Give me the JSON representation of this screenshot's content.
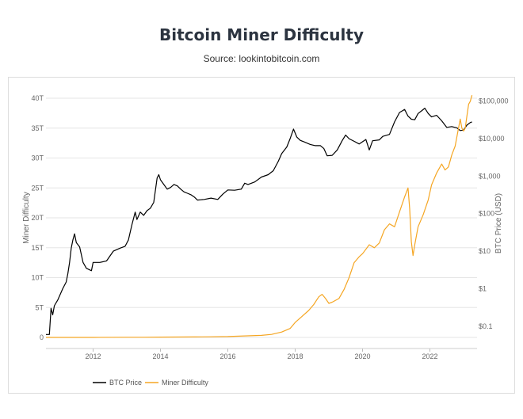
{
  "header": {
    "title": "Bitcoin Miner Difficulty",
    "subtitle": "Source: lookintobitcoin.com"
  },
  "chart_data": {
    "type": "line",
    "title": "Bitcoin Miner Difficulty",
    "subtitle": "Source: lookintobitcoin.com",
    "x_ticks": [
      "2012",
      "2014",
      "2016",
      "2018",
      "2020",
      "2022"
    ],
    "xlim": [
      2010.6,
      2023.4
    ],
    "y_left": {
      "label": "Miner Difficulty",
      "scale": "linear",
      "lim": [
        0,
        40
      ],
      "unit_suffix": "T",
      "ticks": [
        "0",
        "5T",
        "10T",
        "15T",
        "20T",
        "25T",
        "30T",
        "35T",
        "40T"
      ]
    },
    "y_right": {
      "label": "BTC Price (USD)",
      "scale": "log",
      "lim": [
        0.05,
        120000
      ],
      "ticks": [
        "$0.1",
        "$1",
        "$10",
        "$100",
        "$1,000",
        "$10,000",
        "$100,000"
      ],
      "tick_values": [
        0.1,
        1,
        10,
        100,
        1000,
        10000,
        100000
      ]
    },
    "series": [
      {
        "name": "BTC Price",
        "axis": "right",
        "color": "#000000",
        "points": [
          [
            2010.6,
            0.06
          ],
          [
            2010.7,
            0.06
          ],
          [
            2010.75,
            0.3
          ],
          [
            2010.8,
            0.2
          ],
          [
            2010.85,
            0.35
          ],
          [
            2010.95,
            0.5
          ],
          [
            2011.1,
            1.0
          ],
          [
            2011.2,
            1.5
          ],
          [
            2011.25,
            2.5
          ],
          [
            2011.3,
            5
          ],
          [
            2011.35,
            12
          ],
          [
            2011.4,
            20
          ],
          [
            2011.45,
            29
          ],
          [
            2011.5,
            17
          ],
          [
            2011.6,
            13
          ],
          [
            2011.7,
            5
          ],
          [
            2011.8,
            3.5
          ],
          [
            2011.95,
            3
          ],
          [
            2012.0,
            5
          ],
          [
            2012.2,
            5
          ],
          [
            2012.4,
            5.5
          ],
          [
            2012.6,
            10
          ],
          [
            2012.8,
            12
          ],
          [
            2012.95,
            13.5
          ],
          [
            2013.05,
            20
          ],
          [
            2013.15,
            50
          ],
          [
            2013.25,
            110
          ],
          [
            2013.3,
            70
          ],
          [
            2013.4,
            110
          ],
          [
            2013.5,
            90
          ],
          [
            2013.6,
            120
          ],
          [
            2013.7,
            140
          ],
          [
            2013.8,
            200
          ],
          [
            2013.9,
            900
          ],
          [
            2013.95,
            1100
          ],
          [
            2014.0,
            800
          ],
          [
            2014.1,
            600
          ],
          [
            2014.2,
            450
          ],
          [
            2014.3,
            500
          ],
          [
            2014.4,
            600
          ],
          [
            2014.5,
            550
          ],
          [
            2014.6,
            450
          ],
          [
            2014.7,
            380
          ],
          [
            2014.8,
            350
          ],
          [
            2014.9,
            320
          ],
          [
            2015.0,
            280
          ],
          [
            2015.1,
            230
          ],
          [
            2015.3,
            240
          ],
          [
            2015.5,
            260
          ],
          [
            2015.7,
            240
          ],
          [
            2015.85,
            330
          ],
          [
            2016.0,
            430
          ],
          [
            2016.2,
            420
          ],
          [
            2016.4,
            450
          ],
          [
            2016.5,
            650
          ],
          [
            2016.6,
            600
          ],
          [
            2016.8,
            700
          ],
          [
            2017.0,
            950
          ],
          [
            2017.2,
            1100
          ],
          [
            2017.35,
            1400
          ],
          [
            2017.5,
            2500
          ],
          [
            2017.6,
            4000
          ],
          [
            2017.75,
            6000
          ],
          [
            2017.85,
            10000
          ],
          [
            2017.95,
            18000
          ],
          [
            2018.05,
            11000
          ],
          [
            2018.15,
            9000
          ],
          [
            2018.3,
            8000
          ],
          [
            2018.45,
            7000
          ],
          [
            2018.6,
            6500
          ],
          [
            2018.75,
            6500
          ],
          [
            2018.85,
            5500
          ],
          [
            2018.95,
            3500
          ],
          [
            2019.1,
            3600
          ],
          [
            2019.25,
            5000
          ],
          [
            2019.4,
            9000
          ],
          [
            2019.5,
            12500
          ],
          [
            2019.6,
            10000
          ],
          [
            2019.75,
            8500
          ],
          [
            2019.9,
            7200
          ],
          [
            2020.1,
            9500
          ],
          [
            2020.2,
            5000
          ],
          [
            2020.3,
            8800
          ],
          [
            2020.5,
            9300
          ],
          [
            2020.6,
            11500
          ],
          [
            2020.8,
            13000
          ],
          [
            2020.95,
            28000
          ],
          [
            2021.1,
            50000
          ],
          [
            2021.25,
            60000
          ],
          [
            2021.35,
            40000
          ],
          [
            2021.45,
            33000
          ],
          [
            2021.55,
            32000
          ],
          [
            2021.65,
            47000
          ],
          [
            2021.75,
            55000
          ],
          [
            2021.85,
            65000
          ],
          [
            2021.95,
            47000
          ],
          [
            2022.05,
            38000
          ],
          [
            2022.2,
            42000
          ],
          [
            2022.35,
            30000
          ],
          [
            2022.5,
            20000
          ],
          [
            2022.65,
            21000
          ],
          [
            2022.8,
            19500
          ],
          [
            2022.9,
            16500
          ],
          [
            2023.0,
            17000
          ],
          [
            2023.1,
            23000
          ],
          [
            2023.2,
            27000
          ],
          [
            2023.25,
            28000
          ]
        ]
      },
      {
        "name": "Miner Difficulty",
        "axis": "left",
        "color": "#f5a623",
        "points": [
          [
            2010.6,
            0.0
          ],
          [
            2012.0,
            0.0
          ],
          [
            2013.0,
            0.02
          ],
          [
            2013.5,
            0.03
          ],
          [
            2014.0,
            0.05
          ],
          [
            2014.5,
            0.07
          ],
          [
            2015.0,
            0.08
          ],
          [
            2015.5,
            0.1
          ],
          [
            2016.0,
            0.15
          ],
          [
            2016.5,
            0.25
          ],
          [
            2017.0,
            0.35
          ],
          [
            2017.3,
            0.5
          ],
          [
            2017.6,
            0.9
          ],
          [
            2017.85,
            1.5
          ],
          [
            2018.0,
            2.5
          ],
          [
            2018.2,
            3.5
          ],
          [
            2018.4,
            4.5
          ],
          [
            2018.55,
            5.5
          ],
          [
            2018.7,
            6.8
          ],
          [
            2018.8,
            7.2
          ],
          [
            2018.9,
            6.5
          ],
          [
            2019.0,
            5.7
          ],
          [
            2019.1,
            5.9
          ],
          [
            2019.3,
            6.5
          ],
          [
            2019.45,
            8.0
          ],
          [
            2019.6,
            10.0
          ],
          [
            2019.75,
            12.5
          ],
          [
            2019.9,
            13.5
          ],
          [
            2020.0,
            14.0
          ],
          [
            2020.2,
            15.5
          ],
          [
            2020.35,
            15.0
          ],
          [
            2020.5,
            15.8
          ],
          [
            2020.65,
            18.0
          ],
          [
            2020.8,
            19.0
          ],
          [
            2020.95,
            18.5
          ],
          [
            2021.1,
            21.0
          ],
          [
            2021.25,
            23.5
          ],
          [
            2021.35,
            25.0
          ],
          [
            2021.4,
            21.5
          ],
          [
            2021.45,
            16.0
          ],
          [
            2021.5,
            13.7
          ],
          [
            2021.55,
            15.5
          ],
          [
            2021.65,
            18.5
          ],
          [
            2021.8,
            20.5
          ],
          [
            2021.95,
            23.0
          ],
          [
            2022.05,
            25.5
          ],
          [
            2022.2,
            27.5
          ],
          [
            2022.35,
            29.0
          ],
          [
            2022.45,
            28.0
          ],
          [
            2022.55,
            28.5
          ],
          [
            2022.65,
            30.5
          ],
          [
            2022.75,
            32.0
          ],
          [
            2022.85,
            35.0
          ],
          [
            2022.9,
            36.5
          ],
          [
            2022.95,
            35.0
          ],
          [
            2023.0,
            34.5
          ],
          [
            2023.05,
            35.0
          ],
          [
            2023.1,
            37.0
          ],
          [
            2023.15,
            39.0
          ],
          [
            2023.2,
            39.5
          ],
          [
            2023.25,
            40.5
          ]
        ]
      }
    ],
    "grid": true,
    "legend": {
      "position": "bottom-left",
      "entries": [
        "BTC Price",
        "Miner Difficulty"
      ]
    }
  }
}
